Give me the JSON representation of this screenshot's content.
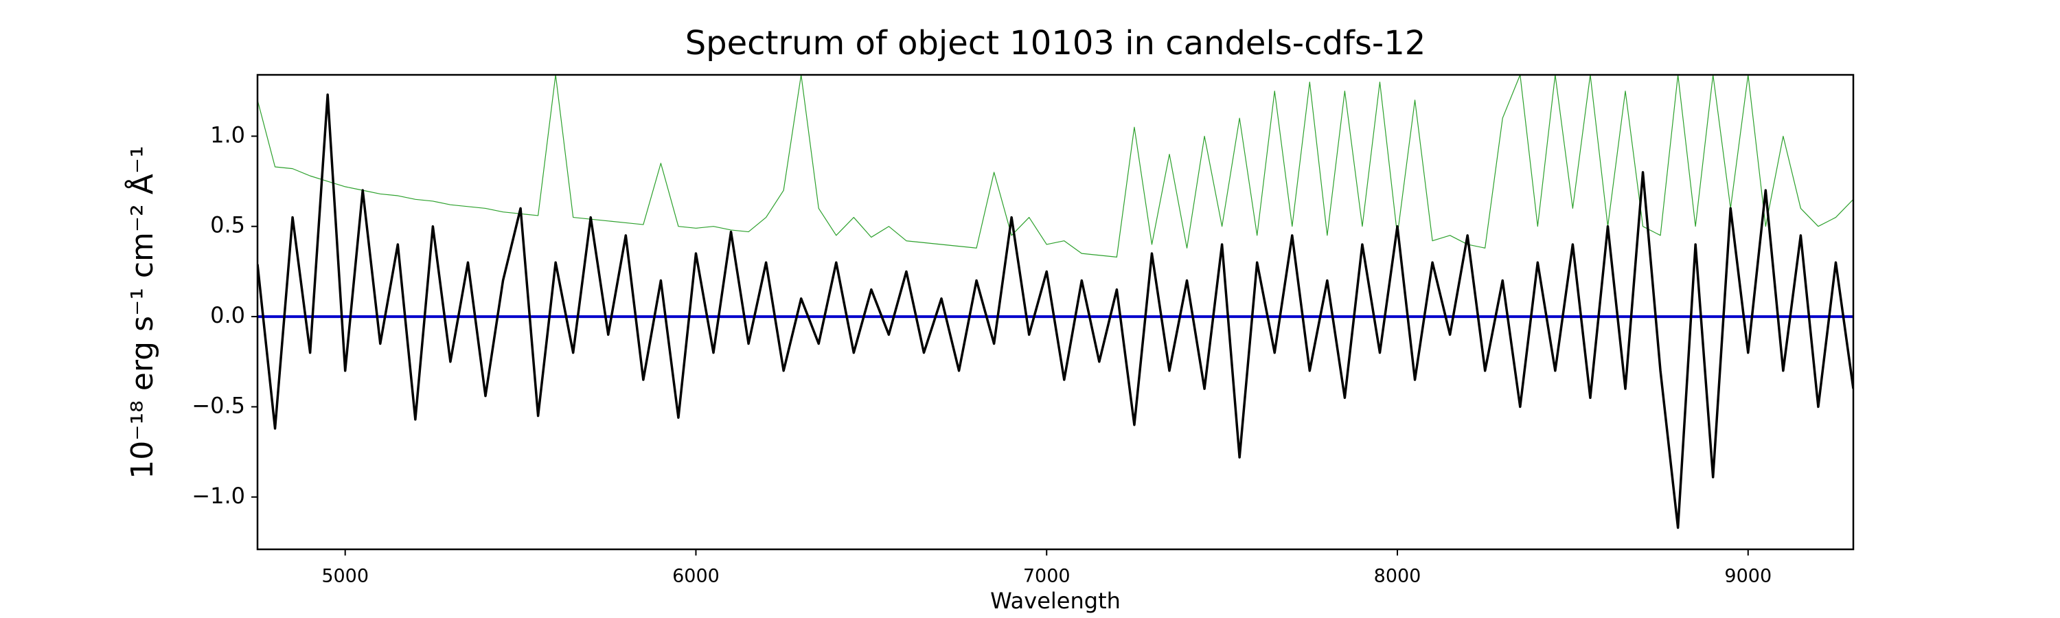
{
  "chart_data": {
    "type": "line",
    "title": "Spectrum of object 10103 in candels-cdfs-12",
    "x_label": "Wavelength",
    "y_label": "10⁻¹⁸ erg s⁻¹ cm⁻² Å⁻¹",
    "x": [
      4750,
      4800,
      4850,
      4900,
      4950,
      5000,
      5050,
      5100,
      5150,
      5200,
      5250,
      5300,
      5350,
      5400,
      5450,
      5500,
      5550,
      5600,
      5650,
      5700,
      5750,
      5800,
      5850,
      5900,
      5950,
      6000,
      6050,
      6100,
      6150,
      6200,
      6250,
      6300,
      6350,
      6400,
      6450,
      6500,
      6550,
      6600,
      6650,
      6700,
      6750,
      6800,
      6850,
      6900,
      6950,
      7000,
      7050,
      7100,
      7150,
      7200,
      7250,
      7300,
      7350,
      7400,
      7450,
      7500,
      7550,
      7600,
      7650,
      7700,
      7750,
      7800,
      7850,
      7900,
      7950,
      8000,
      8050,
      8100,
      8150,
      8200,
      8250,
      8300,
      8350,
      8400,
      8450,
      8500,
      8550,
      8600,
      8650,
      8700,
      8750,
      8800,
      8850,
      8900,
      8950,
      9000,
      9050,
      9100,
      9150,
      9200,
      9250,
      9300
    ],
    "series": [
      {
        "color": "#2ca02c",
        "width": 1.2,
        "values": [
          1.2,
          0.83,
          0.82,
          0.78,
          0.75,
          0.72,
          0.7,
          0.68,
          0.67,
          0.65,
          0.64,
          0.62,
          0.61,
          0.6,
          0.58,
          0.57,
          0.56,
          1.34,
          0.55,
          0.54,
          0.53,
          0.52,
          0.51,
          0.85,
          0.5,
          0.49,
          0.5,
          0.48,
          0.47,
          0.55,
          0.7,
          1.34,
          0.6,
          0.45,
          0.55,
          0.44,
          0.5,
          0.42,
          0.41,
          0.4,
          0.39,
          0.38,
          0.8,
          0.45,
          0.55,
          0.4,
          0.42,
          0.35,
          0.34,
          0.33,
          1.05,
          0.4,
          0.9,
          0.38,
          1.0,
          0.5,
          1.1,
          0.45,
          1.25,
          0.5,
          1.3,
          0.45,
          1.25,
          0.5,
          1.3,
          0.45,
          1.2,
          0.42,
          0.45,
          0.4,
          0.38,
          1.1,
          1.34,
          0.5,
          1.34,
          0.6,
          1.34,
          0.5,
          1.25,
          0.5,
          0.45,
          1.34,
          0.5,
          1.34,
          0.6,
          1.34,
          0.5,
          1.0,
          0.6,
          0.5,
          0.55,
          0.65
        ]
      },
      {
        "color": "#0000cc",
        "width": 4,
        "values": [
          0,
          0,
          0,
          0,
          0,
          0,
          0,
          0,
          0,
          0,
          0,
          0,
          0,
          0,
          0,
          0,
          0,
          0,
          0,
          0,
          0,
          0,
          0,
          0,
          0,
          0,
          0,
          0,
          0,
          0,
          0,
          0,
          0,
          0,
          0,
          0,
          0,
          0,
          0,
          0,
          0,
          0,
          0,
          0,
          0,
          0,
          0,
          0,
          0,
          0,
          0,
          0,
          0,
          0,
          0,
          0,
          0,
          0,
          0,
          0,
          0,
          0,
          0,
          0,
          0,
          0,
          0,
          0,
          0,
          0,
          0,
          0,
          0,
          0,
          0,
          0,
          0,
          0,
          0,
          0,
          0,
          0,
          0,
          0,
          0,
          0,
          0,
          0,
          0,
          0,
          0,
          0
        ]
      },
      {
        "color": "#000000",
        "width": 3.5,
        "values": [
          0.29,
          -0.62,
          0.55,
          -0.2,
          1.23,
          -0.3,
          0.7,
          -0.15,
          0.4,
          -0.57,
          0.5,
          -0.25,
          0.3,
          -0.44,
          0.2,
          0.6,
          -0.55,
          0.3,
          -0.2,
          0.55,
          -0.1,
          0.45,
          -0.35,
          0.2,
          -0.56,
          0.35,
          -0.2,
          0.47,
          -0.15,
          0.3,
          -0.3,
          0.1,
          -0.15,
          0.3,
          -0.2,
          0.15,
          -0.1,
          0.25,
          -0.2,
          0.1,
          -0.3,
          0.2,
          -0.15,
          0.55,
          -0.1,
          0.25,
          -0.35,
          0.2,
          -0.25,
          0.15,
          -0.6,
          0.35,
          -0.3,
          0.2,
          -0.4,
          0.4,
          -0.78,
          0.3,
          -0.2,
          0.45,
          -0.3,
          0.2,
          -0.45,
          0.4,
          -0.2,
          0.5,
          -0.35,
          0.3,
          -0.1,
          0.45,
          -0.3,
          0.2,
          -0.5,
          0.3,
          -0.3,
          0.4,
          -0.45,
          0.5,
          -0.4,
          0.8,
          -0.3,
          -1.17,
          0.4,
          -0.89,
          0.6,
          -0.2,
          0.7,
          -0.3,
          0.45,
          -0.5,
          0.3,
          -0.4
        ]
      }
    ],
    "xlim": [
      4750,
      9300
    ],
    "ylim": [
      -1.29,
      1.34
    ],
    "xticks": [
      5000,
      6000,
      7000,
      8000,
      9000
    ],
    "yticks": [
      {
        "value": -1.0,
        "label": "−1.0"
      },
      {
        "value": -0.5,
        "label": "−0.5"
      },
      {
        "value": 0,
        "label": "0.0"
      },
      0.5,
      {
        "value": 1.0,
        "label": "1.0"
      }
    ],
    "grid": false
  }
}
